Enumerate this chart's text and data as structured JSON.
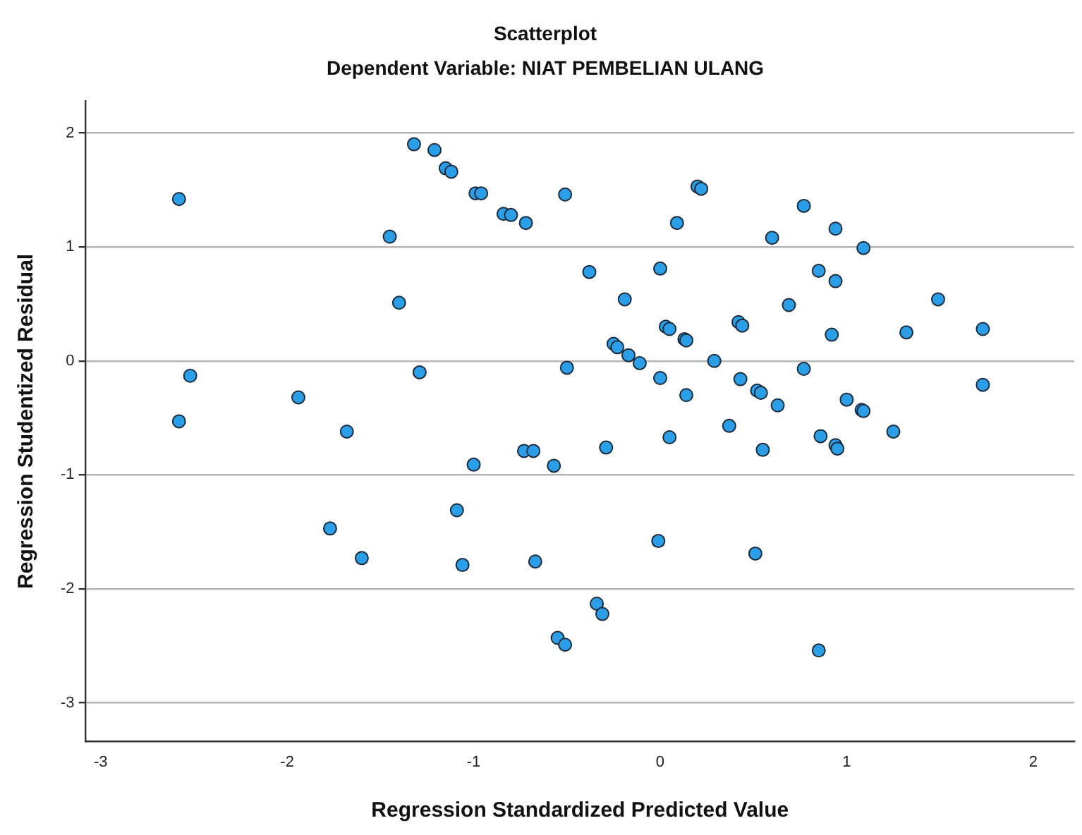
{
  "chart_data": {
    "type": "scatter",
    "title": "Scatterplot",
    "subtitle": "Dependent Variable: NIAT PEMBELIAN ULANG",
    "xlabel": "Regression Standardized Predicted Value",
    "ylabel": "Regression Studentized Residual",
    "xlim": [
      -3.08,
      2.22
    ],
    "ylim": [
      -3.34,
      2.28
    ],
    "xticks": [
      -3,
      -2,
      -1,
      0,
      1,
      2
    ],
    "yticks": [
      -3,
      -2,
      -1,
      0,
      1,
      2
    ],
    "grid": "y",
    "marker": "circle",
    "legend": false,
    "series": [
      {
        "color": "#2a9fe8",
        "x": [
          -2.58,
          -2.52,
          -2.58,
          -1.94,
          -1.68,
          -1.77,
          -1.6,
          -1.45,
          -1.4,
          -1.32,
          -1.29,
          -1.21,
          -1.15,
          -1.12,
          -0.99,
          -0.96,
          -0.84,
          -0.8,
          -0.72,
          -1.09,
          -1.06,
          -1.0,
          -0.73,
          -0.68,
          -0.67,
          -0.57,
          -0.51,
          -0.5,
          -0.38,
          -0.55,
          -0.51,
          -0.19,
          0.0,
          0.09,
          0.2,
          0.22,
          0.6,
          0.77,
          0.94,
          1.09,
          0.85,
          0.94,
          0.69,
          1.49,
          1.32,
          1.73,
          1.73,
          0.92,
          0.42,
          0.44,
          0.03,
          0.05,
          0.13,
          0.14,
          -0.25,
          -0.23,
          -0.17,
          -0.11,
          0.29,
          0.0,
          0.14,
          0.43,
          0.52,
          0.54,
          0.63,
          0.77,
          1.0,
          1.08,
          1.09,
          0.37,
          -0.29,
          0.05,
          0.55,
          0.86,
          0.94,
          0.95,
          1.25,
          -0.01,
          0.51,
          -0.34,
          -0.31,
          0.85
        ],
        "values": [
          1.42,
          -0.13,
          -0.53,
          -0.32,
          -0.62,
          -1.47,
          -1.73,
          1.09,
          0.51,
          1.9,
          -0.1,
          1.85,
          1.69,
          1.66,
          1.47,
          1.47,
          1.29,
          1.28,
          1.21,
          -1.31,
          -1.79,
          -0.91,
          -0.79,
          -0.79,
          -1.76,
          -0.92,
          1.46,
          -0.06,
          0.78,
          -2.43,
          -2.49,
          0.54,
          0.81,
          1.21,
          1.53,
          1.51,
          1.08,
          1.36,
          1.16,
          0.99,
          0.79,
          0.7,
          0.49,
          0.54,
          0.25,
          0.28,
          -0.21,
          0.23,
          0.34,
          0.31,
          0.3,
          0.28,
          0.19,
          0.18,
          0.15,
          0.12,
          0.05,
          -0.02,
          0.0,
          -0.15,
          -0.3,
          -0.16,
          -0.26,
          -0.28,
          -0.39,
          -0.07,
          -0.34,
          -0.43,
          -0.44,
          -0.57,
          -0.76,
          -0.67,
          -0.78,
          -0.66,
          -0.74,
          -0.77,
          -0.62,
          -1.58,
          -1.69,
          -2.13,
          -2.22,
          -2.54
        ]
      }
    ]
  }
}
